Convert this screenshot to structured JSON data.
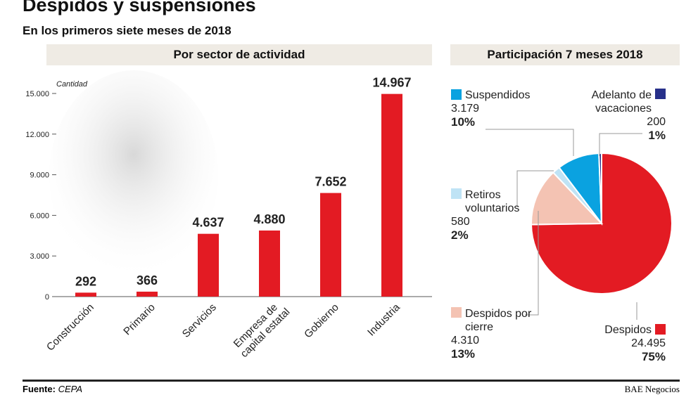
{
  "title": "Despidos y suspensiones",
  "subtitle": "En los primeros siete meses de 2018",
  "source_label": "Fuente:",
  "source": "CEPA",
  "brand": "BAE Negocios",
  "chart_data": [
    {
      "type": "bar",
      "title": "Por sector de actividad",
      "ylabel": "Cantidad",
      "ylim": [
        0,
        15000
      ],
      "yticks": [
        "0",
        "3.000",
        "6.000",
        "9.000",
        "12.000",
        "15.000"
      ],
      "ytick_values": [
        0,
        3000,
        6000,
        9000,
        12000,
        15000
      ],
      "categories": [
        "Construcción",
        "Primario",
        "Servicios",
        "Empresa de capital estatal",
        "Gobierno",
        "Industria"
      ],
      "values": [
        292,
        366,
        4637,
        4880,
        7652,
        14967
      ],
      "labels": [
        "292",
        "366",
        "4.637",
        "4.880",
        "7.652",
        "14.967"
      ],
      "color": "#e31b23"
    },
    {
      "type": "pie",
      "title": "Participación 7 meses 2018",
      "slices": [
        {
          "name": "Despidos",
          "value": 24495,
          "value_label": "24.495",
          "pct": "75%",
          "color": "#e31b23"
        },
        {
          "name": "Despidos por cierre",
          "value": 4310,
          "value_label": "4.310",
          "pct": "13%",
          "color": "#f4c3b3"
        },
        {
          "name": "Retiros voluntarios",
          "value": 580,
          "value_label": "580",
          "pct": "2%",
          "color": "#bfe3f5"
        },
        {
          "name": "Suspendidos",
          "value": 3179,
          "value_label": "3.179",
          "pct": "10%",
          "color": "#0aa2e0"
        },
        {
          "name": "Adelanto de vacaciones",
          "value": 200,
          "value_label": "200",
          "pct": "1%",
          "color": "#27308a"
        }
      ]
    }
  ]
}
